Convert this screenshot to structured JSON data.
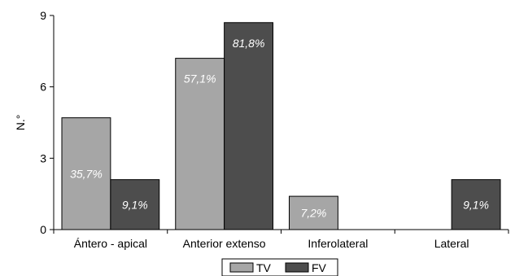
{
  "chart_data": {
    "type": "bar",
    "title": "",
    "xlabel": "",
    "ylabel": "N.°",
    "ylim": [
      0,
      9
    ],
    "yticks": [
      0,
      3,
      6,
      9
    ],
    "grid": false,
    "legend_position": "bottom",
    "categories": [
      "Ántero - apical",
      "Anterior extenso",
      "Inferolateral",
      "Lateral"
    ],
    "series": [
      {
        "name": "TV",
        "color": "#a6a6a6",
        "values": [
          4.7,
          7.2,
          1.4,
          0
        ],
        "labels": [
          "35,7%",
          "57,1%",
          "7,2%",
          ""
        ]
      },
      {
        "name": "FV",
        "color": "#4d4d4d",
        "values": [
          2.1,
          8.7,
          0,
          2.1
        ],
        "labels": [
          "9,1%",
          "81,8%",
          "",
          "9,1%"
        ]
      }
    ]
  }
}
